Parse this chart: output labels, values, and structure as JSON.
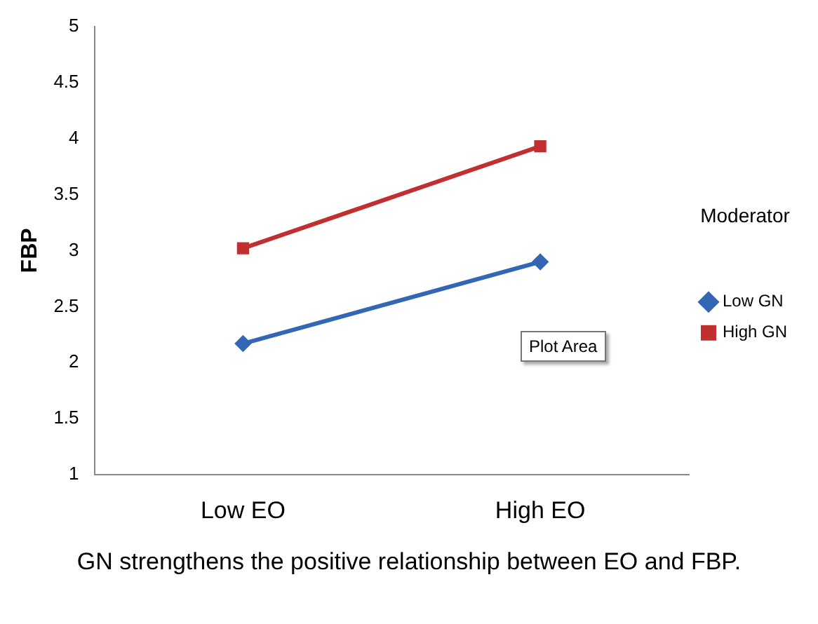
{
  "chart_data": {
    "type": "line",
    "ylabel": "FBP",
    "legend_title": "Moderator",
    "categories": [
      "Low EO",
      "High EO"
    ],
    "series": [
      {
        "name": "Low GN",
        "color": "#3366b5",
        "values": [
          2.17,
          2.9
        ],
        "marker": "diamond"
      },
      {
        "name": "High GN",
        "color": "#c03030",
        "values": [
          3.02,
          3.93
        ],
        "marker": "square"
      }
    ],
    "ylim": [
      1,
      5
    ],
    "yticks": [
      1,
      1.5,
      2,
      2.5,
      3,
      3.5,
      4,
      4.5,
      5
    ],
    "grid": false,
    "legend": "right",
    "annotations": [
      "Plot Area",
      "GN strengthens the positive relationship between EO and FBP."
    ]
  }
}
